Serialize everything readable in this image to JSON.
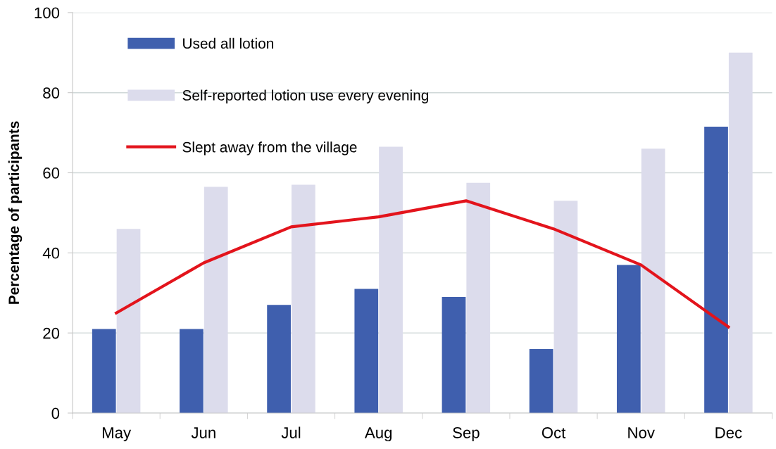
{
  "chart_data": {
    "type": "bar",
    "categories": [
      "May",
      "Jun",
      "Jul",
      "Aug",
      "Sep",
      "Oct",
      "Nov",
      "Dec"
    ],
    "series": [
      {
        "name": "Used all lotion",
        "color": "#3f5fae",
        "values": [
          21,
          21,
          27,
          31,
          29,
          16,
          37,
          71.5
        ]
      },
      {
        "name": "Self-reported lotion use every evening",
        "color": "#dcdcec",
        "values": [
          46,
          56.5,
          57,
          66.5,
          57.5,
          53,
          66,
          90
        ]
      },
      {
        "name": "Slept away from the village",
        "type": "line",
        "color": "#e3141c",
        "values": [
          25,
          37.5,
          46.5,
          49,
          53,
          46,
          37,
          21.5
        ]
      }
    ],
    "ylabel": "Percentage of participants",
    "ylim": [
      0,
      100
    ],
    "yticks": [
      0,
      20,
      40,
      60,
      80,
      100
    ],
    "grid": "y",
    "legend": "top left",
    "line_style": "solid"
  }
}
